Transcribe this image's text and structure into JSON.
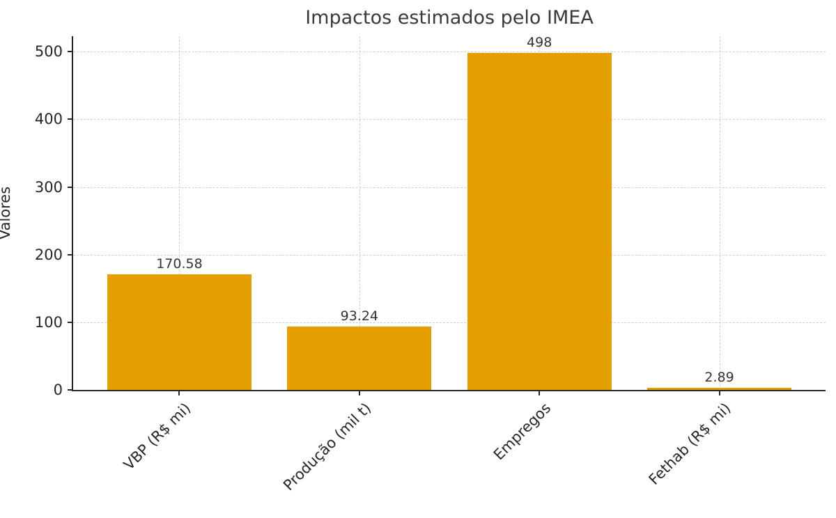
{
  "chart_data": {
    "type": "bar",
    "title": "Impactos estimados pelo IMEA",
    "xlabel": "",
    "ylabel": "Valores",
    "categories": [
      "VBP (R$ mi)",
      "Produção (mil t)",
      "Empregos",
      "Fethab (R$ mi)"
    ],
    "values": [
      170.58,
      93.24,
      498,
      2.89
    ],
    "value_labels": [
      "170.58",
      "93.24",
      "498",
      "2.89"
    ],
    "yticks": [
      0,
      100,
      200,
      300,
      400,
      500
    ],
    "ylim": [
      0,
      523
    ],
    "grid": "dashed, horizontal at each ytick and vertical at each bar center",
    "legend_position": "none",
    "colors": {
      "bar": "#E69F00",
      "grid": "#cfcfcf",
      "spine": "#262626",
      "tick_text": "#262626",
      "title_text": "#3a3a3a",
      "value_text": "#333333",
      "background": "#ffffff"
    }
  }
}
